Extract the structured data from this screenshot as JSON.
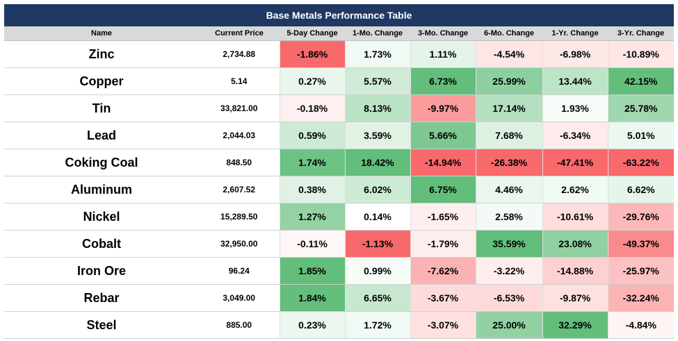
{
  "chart_data": {
    "type": "table",
    "title": "Base Metals Performance Table",
    "columns": [
      "Name",
      "Current Price",
      "5-Day Change",
      "1-Mo. Change",
      "3-Mo. Change",
      "6-Mo. Change",
      "1-Yr. Change",
      "3-Yr. Change"
    ],
    "rows": [
      {
        "name": "Zinc",
        "price": "2,734.88",
        "changes": [
          "-1.86%",
          "1.73%",
          "1.11%",
          "-4.54%",
          "-6.98%",
          "-10.89%"
        ]
      },
      {
        "name": "Copper",
        "price": "5.14",
        "changes": [
          "0.27%",
          "5.57%",
          "6.73%",
          "25.99%",
          "13.44%",
          "42.15%"
        ]
      },
      {
        "name": "Tin",
        "price": "33,821.00",
        "changes": [
          "-0.18%",
          "8.13%",
          "-9.97%",
          "17.14%",
          "1.93%",
          "25.78%"
        ]
      },
      {
        "name": "Lead",
        "price": "2,044.03",
        "changes": [
          "0.59%",
          "3.59%",
          "5.66%",
          "7.68%",
          "-6.34%",
          "5.01%"
        ]
      },
      {
        "name": "Coking Coal",
        "price": "848.50",
        "changes": [
          "1.74%",
          "18.42%",
          "-14.94%",
          "-26.38%",
          "-47.41%",
          "-63.22%"
        ]
      },
      {
        "name": "Aluminum",
        "price": "2,607.52",
        "changes": [
          "0.38%",
          "6.02%",
          "6.75%",
          "4.46%",
          "2.62%",
          "6.62%"
        ]
      },
      {
        "name": "Nickel",
        "price": "15,289.50",
        "changes": [
          "1.27%",
          "0.14%",
          "-1.65%",
          "2.58%",
          "-10.61%",
          "-29.76%"
        ]
      },
      {
        "name": "Cobalt",
        "price": "32,950.00",
        "changes": [
          "-0.11%",
          "-1.13%",
          "-1.79%",
          "35.59%",
          "23.08%",
          "-49.37%"
        ]
      },
      {
        "name": "Iron Ore",
        "price": "96.24",
        "changes": [
          "1.85%",
          "0.99%",
          "-7.62%",
          "-3.22%",
          "-14.88%",
          "-25.97%"
        ]
      },
      {
        "name": "Rebar",
        "price": "3,049.00",
        "changes": [
          "1.84%",
          "6.65%",
          "-3.67%",
          "-6.53%",
          "-9.87%",
          "-32.24%"
        ]
      },
      {
        "name": "Steel",
        "price": "885.00",
        "changes": [
          "0.23%",
          "1.72%",
          "-3.07%",
          "25.00%",
          "32.29%",
          "-4.84%"
        ]
      }
    ],
    "colors": {
      "positive_max": "#63be7b",
      "negative_max": "#f8696b",
      "neutral": "#ffffff",
      "title_bar": "#1f3864",
      "header_bg": "#d9d9d9"
    }
  }
}
